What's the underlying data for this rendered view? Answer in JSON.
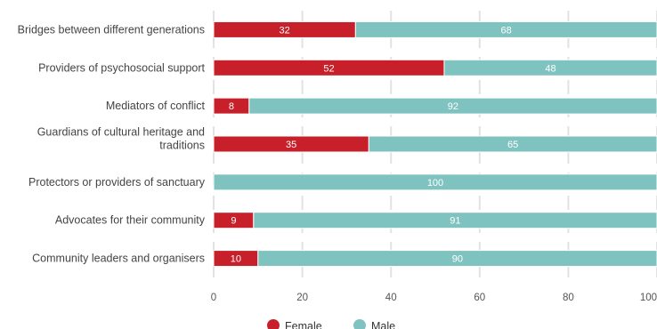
{
  "chart_data": {
    "type": "bar",
    "orientation": "horizontal",
    "stacked": true,
    "categories": [
      "Bridges between different generations",
      "Providers of psychosocial support",
      "Mediators of conflict",
      "Guardians of cultural heritage and traditions",
      "Protectors or providers of sanctuary",
      "Advocates for their community",
      "Community leaders and organisers"
    ],
    "category_lines": [
      [
        "Bridges between different generations"
      ],
      [
        "Providers of psychosocial support"
      ],
      [
        "Mediators of conflict"
      ],
      [
        "Guardians of cultural heritage and",
        "traditions"
      ],
      [
        "Protectors or providers of sanctuary"
      ],
      [
        "Advocates for their community"
      ],
      [
        "Community leaders and organisers"
      ]
    ],
    "series": [
      {
        "name": "Female",
        "color": "#c8202a",
        "values": [
          32,
          52,
          8,
          35,
          0,
          9,
          10
        ]
      },
      {
        "name": "Male",
        "color": "#7fc3c0",
        "values": [
          68,
          48,
          92,
          65,
          100,
          91,
          90
        ]
      }
    ],
    "xlim": [
      0,
      100
    ],
    "x_ticks": [
      "0",
      "20",
      "40",
      "60",
      "80",
      "100"
    ],
    "grid": "vertical dashed",
    "legend": "bottom-center"
  }
}
